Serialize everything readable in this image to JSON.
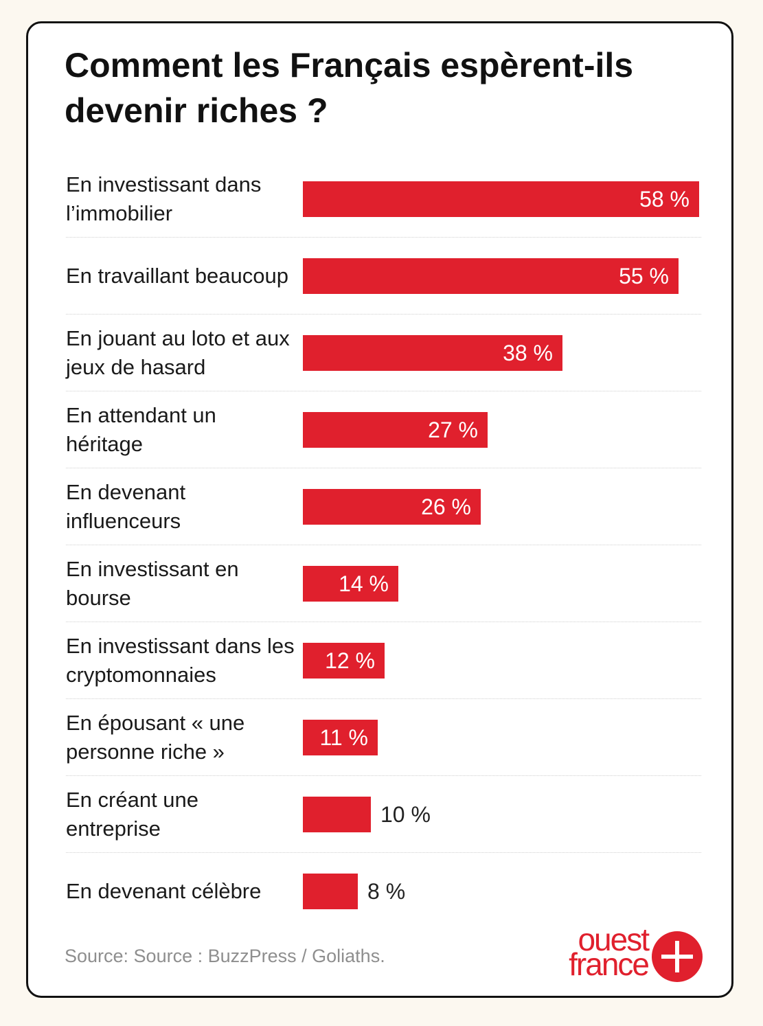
{
  "title": "Comment les Français espèrent-ils devenir riches ?",
  "source": "Source: Source : BuzzPress / Goliaths.",
  "logo": {
    "line1": "ouest",
    "line2": "france"
  },
  "colors": {
    "bar": "#e0202d",
    "logo": "#e0202d"
  },
  "chart_data": {
    "type": "bar",
    "orientation": "horizontal",
    "title": "Comment les Français espèrent-ils devenir riches ?",
    "unit": "%",
    "xlim": [
      0,
      58
    ],
    "grid": false,
    "categories": [
      "En investissant dans l’immobilier",
      "En travaillant beaucoup",
      "En jouant au loto et aux jeux de hasard",
      "En attendant un héritage",
      "En devenant influenceurs",
      "En investissant en bourse",
      "En investissant dans les cryptomonnaies",
      "En épousant « une personne riche »",
      "En créant une entreprise",
      "En devenant célèbre"
    ],
    "values": [
      58,
      55,
      38,
      27,
      26,
      14,
      12,
      11,
      10,
      8
    ],
    "value_labels": [
      "58 %",
      "55 %",
      "38 %",
      "27 %",
      "26 %",
      "14 %",
      "12 %",
      "11 %",
      "10 %",
      "8 %"
    ]
  }
}
